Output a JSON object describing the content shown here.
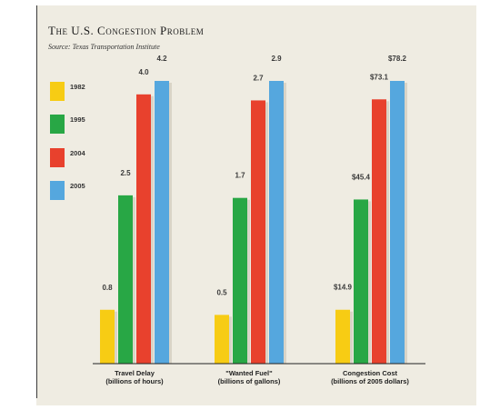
{
  "chart_data": {
    "type": "bar",
    "title": "The U.S. Congestion Problem",
    "subtitle": "Source: Texas Transportation Institute",
    "categories": [
      [
        "Travel Delay",
        "(billions of hours)"
      ],
      [
        "\"Wanted Fuel\"",
        "(billions of gallons)"
      ],
      [
        "Congestion Cost",
        "(billions of 2005 dollars)"
      ]
    ],
    "series": [
      {
        "name": "1982",
        "color": "#f7cc14",
        "values": [
          0.8,
          0.5,
          14.9
        ],
        "labels": [
          "0.8",
          "0.5",
          "$14.9"
        ]
      },
      {
        "name": "1995",
        "color": "#28a745",
        "values": [
          2.5,
          1.7,
          45.4
        ],
        "labels": [
          "2.5",
          "1.7",
          "$45.4"
        ]
      },
      {
        "name": "2004",
        "color": "#e8412d",
        "values": [
          4.0,
          2.7,
          73.1
        ],
        "labels": [
          "4.0",
          "2.7",
          "$73.1"
        ]
      },
      {
        "name": "2005",
        "color": "#55a7de",
        "values": [
          4.2,
          2.9,
          78.2
        ],
        "labels": [
          "4.2",
          "2.9",
          "$78.2"
        ]
      }
    ],
    "legend_position": "top-left",
    "grid": false
  }
}
